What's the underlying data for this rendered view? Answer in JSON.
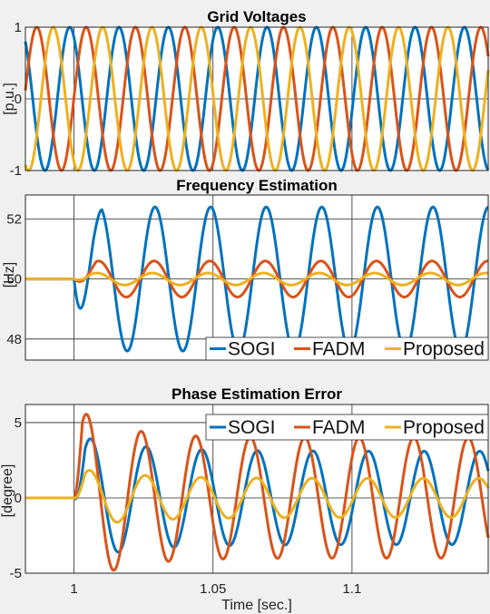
{
  "colors": {
    "sogi": "#0072BD",
    "fadm": "#D95319",
    "proposed": "#EDB120",
    "grid": "#262626",
    "frame": "#262626"
  },
  "xaxis": {
    "label": "Time [sec.]",
    "range": [
      0.9825,
      1.149
    ],
    "ticks": [
      1,
      1.05,
      1.1
    ],
    "tick_labels": [
      "1",
      "1.05",
      "1.1"
    ]
  },
  "legend_labels": [
    "SOGI",
    "FADM",
    "Proposed"
  ],
  "chart_data": [
    {
      "type": "line",
      "title": "Grid Voltages",
      "ylabel": "[p.u.]",
      "ylim": [
        -1,
        1
      ],
      "yticks": [
        -1,
        0,
        1
      ],
      "ytick_labels": [
        "-1",
        "0",
        "1"
      ],
      "grid": true,
      "legend": "none",
      "series": [
        {
          "key": "sogi",
          "kind": "three-phase sinusoid",
          "amplitude": 1,
          "phase_deg": 0
        },
        {
          "key": "fadm",
          "kind": "three-phase sinusoid",
          "amplitude": 1,
          "phase_deg": -120
        },
        {
          "key": "proposed",
          "kind": "three-phase sinusoid",
          "amplitude": 1,
          "phase_deg": 120
        }
      ]
    },
    {
      "type": "line",
      "title": "Frequency Estimation",
      "ylabel": "[Hz]",
      "ylim": [
        47.3,
        52.8
      ],
      "yticks": [
        48,
        50,
        52
      ],
      "ytick_labels": [
        "48",
        "50",
        "52"
      ],
      "grid": true,
      "legend": "bottom-right",
      "baseline": 50,
      "series": [
        {
          "name": "SOGI",
          "key": "sogi",
          "step_time": 1.0,
          "steady_amplitude": 2.4,
          "initial_dip": 48.6
        },
        {
          "name": "FADM",
          "key": "fadm",
          "step_time": 1.0,
          "steady_amplitude": 0.6
        },
        {
          "name": "Proposed",
          "key": "proposed",
          "step_time": 1.0,
          "steady_amplitude": 0.2
        }
      ]
    },
    {
      "type": "line",
      "title": "Phase Estimation Error",
      "ylabel": "[degree]",
      "ylim": [
        -5,
        6.2
      ],
      "yticks": [
        -5,
        0,
        5
      ],
      "ytick_labels": [
        "-5",
        "0",
        "5"
      ],
      "grid": true,
      "legend": "top-right",
      "baseline": 0,
      "series": [
        {
          "name": "SOGI",
          "key": "sogi",
          "step_time": 1.0,
          "first_peak": 4.2,
          "steady_amplitude": 3.1
        },
        {
          "name": "FADM",
          "key": "fadm",
          "step_time": 1.0,
          "first_peak": 6.1,
          "steady_amplitude": 4.0
        },
        {
          "name": "Proposed",
          "key": "proposed",
          "step_time": 1.0,
          "first_peak": 2.0,
          "steady_amplitude": 1.3
        }
      ]
    }
  ]
}
